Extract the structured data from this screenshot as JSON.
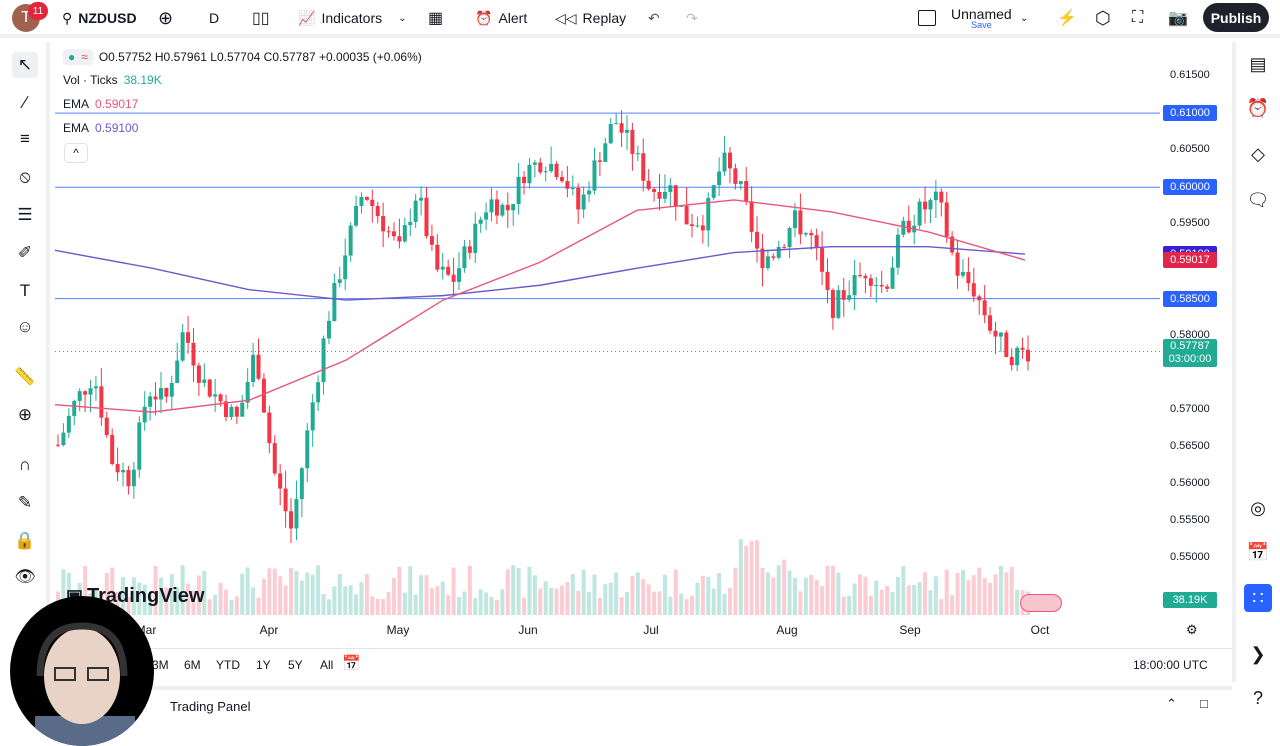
{
  "topbar": {
    "avatar_letter": "T",
    "notif_count": "11",
    "symbol": "NZDUSD",
    "interval": "D",
    "indicators": "Indicators",
    "alert": "Alert",
    "replay": "Replay",
    "layout_name": "Unnamed",
    "save": "Save",
    "publish": "Publish"
  },
  "legend": {
    "ohlc": "O0.57752 H0.57961 L0.57704 C0.57787 +0.00035 (+0.06%)",
    "vol_label": "Vol · Ticks",
    "vol_value": "38.19K",
    "ema1_label": "EMA",
    "ema1_value": "0.59017",
    "ema2_label": "EMA",
    "ema2_value": "0.59100",
    "collapse": "^"
  },
  "price_axis": {
    "labels": [
      "0.61500",
      "0.60500",
      "0.59500",
      "0.58000",
      "0.57000",
      "0.56500",
      "0.56000",
      "0.55500",
      "0.55000"
    ],
    "badges": {
      "line_61": "0.61000",
      "line_60": "0.60000",
      "ema_purple": "0.59100",
      "ema_red": "0.59017",
      "line_585": "0.58500",
      "last_price": "0.57787",
      "countdown": "03:00:00",
      "volume": "38.19K"
    }
  },
  "time_axis": [
    "Mar",
    "Apr",
    "May",
    "Jun",
    "Jul",
    "Aug",
    "Sep",
    "Oct"
  ],
  "bottombar": {
    "ranges": [
      "3M",
      "6M",
      "YTD",
      "1Y",
      "5Y",
      "All"
    ],
    "time": "18:00:00 UTC"
  },
  "trading_panel": "Trading Panel",
  "logo": "TradingView",
  "colors": {
    "up": "#22ab94",
    "down": "#f23645",
    "ema_fast": "#e7577a",
    "ema_slow": "#6a5acd",
    "hline": "#2962ff",
    "accent": "#2962ff"
  },
  "chart_data": {
    "type": "candlestick",
    "symbol": "NZDUSD",
    "interval": "D",
    "ylim": [
      0.545,
      0.617
    ],
    "key_closes": [
      0.5653,
      0.5713,
      0.5747,
      0.5632,
      0.5606,
      0.5727,
      0.5713,
      0.5808,
      0.574,
      0.5713,
      0.5686,
      0.5781,
      0.5619,
      0.5538,
      0.5686,
      0.5821,
      0.5915,
      0.5996,
      0.5956,
      0.5915,
      0.5996,
      0.5889,
      0.5875,
      0.5929,
      0.5983,
      0.5969,
      0.6023,
      0.6037,
      0.6023,
      0.5969,
      0.6037,
      0.6091,
      0.605,
      0.5996,
      0.6003,
      0.5956,
      0.5956,
      0.6037,
      0.5996,
      0.5902,
      0.5915,
      0.5956,
      0.5929,
      0.5835,
      0.5862,
      0.5889,
      0.5862,
      0.5942,
      0.5969,
      0.5983,
      0.5889,
      0.5862,
      0.5808,
      0.5774,
      0.5779
    ],
    "ema_fast": [
      0.5707,
      0.5697,
      0.5713,
      0.5767,
      0.5848,
      0.5899,
      0.5969,
      0.5983,
      0.5967,
      0.594,
      0.5902
    ],
    "ema_slow": [
      0.5915,
      0.5891,
      0.5862,
      0.5848,
      0.5854,
      0.5868,
      0.5891,
      0.5912,
      0.592,
      0.592,
      0.591
    ],
    "horizontal_lines": [
      0.61,
      0.6,
      0.585
    ],
    "last_price": 0.57787
  }
}
